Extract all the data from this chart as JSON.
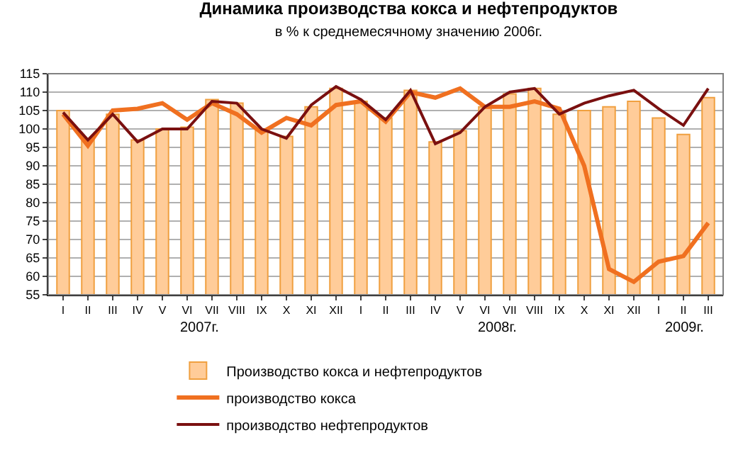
{
  "chart_data": {
    "type": "bar",
    "title": "Динамика производства кокса и нефтепродуктов",
    "subtitle": "в % к среднемесячному значению 2006г.",
    "categories": [
      "I",
      "II",
      "III",
      "IV",
      "V",
      "VI",
      "VII",
      "VIII",
      "IX",
      "X",
      "XI",
      "XII",
      "I",
      "II",
      "III",
      "IV",
      "V",
      "VI",
      "VII",
      "VIII",
      "IX",
      "X",
      "XI",
      "XII",
      "I",
      "II",
      "III"
    ],
    "series": [
      {
        "name": "Производство кокса и нефтепродуктов",
        "color": "#ffcc99",
        "values": [
          105,
          97,
          104,
          97,
          100,
          100.5,
          108,
          107,
          100,
          98,
          106,
          111,
          107.5,
          103,
          110.5,
          96.5,
          99.5,
          106,
          109.5,
          111,
          104,
          105,
          106,
          107.5,
          103,
          98.5,
          108.5
        ]
      },
      {
        "name": "производство кокса",
        "type": "line",
        "color": "#f07020",
        "values": [
          104,
          95.5,
          105,
          105.5,
          107,
          102.5,
          107,
          104,
          99,
          103,
          101,
          106.5,
          107.5,
          102,
          110,
          108.5,
          111,
          106,
          106,
          107.5,
          105.5,
          90,
          62,
          58.5,
          64,
          65.5,
          74.5
        ]
      },
      {
        "name": "производство нефтепродуктов",
        "type": "line",
        "color": "#7a1010",
        "values": [
          104.5,
          97,
          104,
          96.5,
          100,
          100,
          107.5,
          107,
          100,
          97.5,
          106.5,
          111.5,
          108,
          102.5,
          110.5,
          96,
          99,
          106,
          110,
          111,
          104,
          107,
          109,
          110.5,
          105.5,
          101,
          111
        ]
      }
    ],
    "ylim": [
      55,
      115
    ],
    "yticks": [
      55,
      60,
      65,
      70,
      75,
      80,
      85,
      90,
      95,
      100,
      105,
      110,
      115
    ],
    "grid": "y",
    "legend": "bottom",
    "annotations": [
      "2007г.",
      "2008г.",
      "2009г."
    ]
  }
}
